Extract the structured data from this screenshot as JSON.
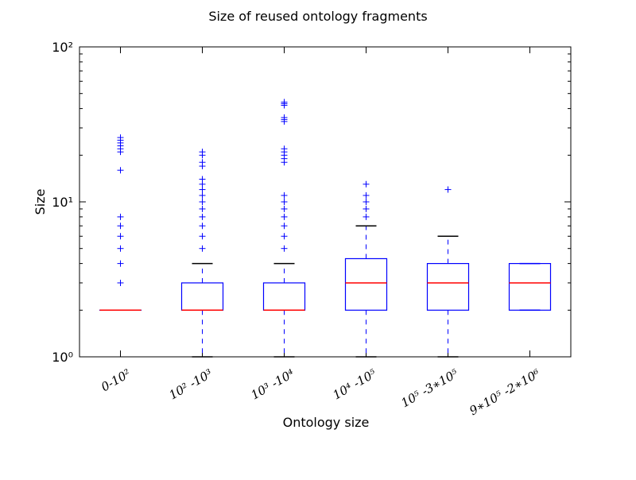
{
  "chart_data": {
    "type": "box",
    "title": "Size of reused ontology fragments",
    "xlabel": "Ontology size",
    "ylabel": "Size",
    "yscale": "log",
    "ylim": [
      1,
      100
    ],
    "yticks": [
      {
        "value": 1,
        "label": "10⁰"
      },
      {
        "value": 10,
        "label": "10¹"
      },
      {
        "value": 100,
        "label": "10²"
      }
    ],
    "grid": false,
    "categories": [
      "0-10²",
      "10² -10³",
      "10³ -10⁴",
      "10⁴ -10⁵",
      "10⁵ -3∗10⁵",
      "9∗10⁵ -2∗10⁶"
    ],
    "boxes": [
      {
        "whislo": 2,
        "q1": 2,
        "med": 2,
        "q3": 2,
        "whishi": 2,
        "fliers": [
          3,
          4,
          5,
          6,
          7,
          8,
          16,
          21,
          22,
          23,
          24,
          25,
          26
        ]
      },
      {
        "whislo": 1,
        "q1": 2,
        "med": 2,
        "q3": 3,
        "whishi": 4,
        "fliers": [
          5,
          6,
          7,
          8,
          9,
          10,
          11,
          12,
          13,
          14,
          17,
          18,
          20,
          21
        ]
      },
      {
        "whislo": 1,
        "q1": 2,
        "med": 2,
        "q3": 3,
        "whishi": 4,
        "fliers": [
          5,
          6,
          7,
          8,
          9,
          10,
          11,
          18,
          19,
          20,
          21,
          22,
          33,
          34,
          35,
          42,
          43,
          44
        ]
      },
      {
        "whislo": 1,
        "q1": 2,
        "med": 3,
        "q3": 4.3,
        "whishi": 7,
        "fliers": [
          8,
          9,
          10,
          11,
          13
        ]
      },
      {
        "whislo": 1,
        "q1": 2,
        "med": 3,
        "q3": 4,
        "whishi": 6,
        "fliers": [
          12
        ]
      },
      {
        "whislo": 2,
        "q1": 2,
        "med": 3,
        "q3": 4,
        "whishi": 4,
        "fliers": []
      }
    ],
    "colors": {
      "box": "#0000ff",
      "median": "#ff0000",
      "cap": "#000000",
      "flier": "#0000ff"
    }
  }
}
